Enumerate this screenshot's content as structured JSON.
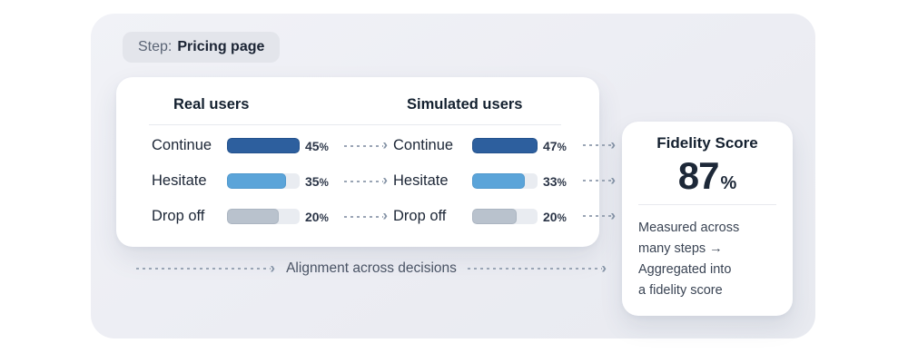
{
  "step_badge": {
    "prefix": "Step:",
    "label": "Pricing page"
  },
  "comparison": {
    "real": {
      "header": "Real users",
      "rows": [
        {
          "label": "Continue",
          "value": "45",
          "fill": 100
        },
        {
          "label": "Hesitate",
          "value": "35",
          "fill": 81
        },
        {
          "label": "Drop off",
          "value": "20",
          "fill": 71
        }
      ]
    },
    "simulated": {
      "header": "Simulated users",
      "rows": [
        {
          "label": "Continue",
          "value": "47",
          "fill": 100
        },
        {
          "label": "Hesitate",
          "value": "33",
          "fill": 80
        },
        {
          "label": "Drop off",
          "value": "20",
          "fill": 68
        }
      ]
    }
  },
  "ui": {
    "percent_sign": "%"
  },
  "flow_label": "Alignment across decisions",
  "fidelity": {
    "title": "Fidelity Score",
    "score": "87",
    "unit": "%",
    "description_lines": [
      "Measured across",
      "many steps →",
      "Aggregated into",
      "a fidelity score"
    ]
  },
  "colors": {
    "continue_bar": "#2d5f9e",
    "hesitate_bar": "#5ba4d9",
    "drop_off_bar": "#b9c2cd",
    "bar_track": "#e9ecf1",
    "panel_background": "#edeff4",
    "card_background": "#ffffff",
    "pill_background": "#e3e5eb",
    "arrow": "#9aa5b5",
    "heading_text": "#13202f",
    "score_text": "#1d2838"
  },
  "chart_data": {
    "type": "bar",
    "categories": [
      "Continue",
      "Hesitate",
      "Drop off"
    ],
    "series": [
      {
        "name": "Real users",
        "values": [
          45,
          35,
          20
        ]
      },
      {
        "name": "Simulated users",
        "values": [
          47,
          33,
          20
        ]
      }
    ],
    "title": "Step: Pricing page",
    "annotation": "Alignment across decisions",
    "fidelity_score_pct": 87
  }
}
